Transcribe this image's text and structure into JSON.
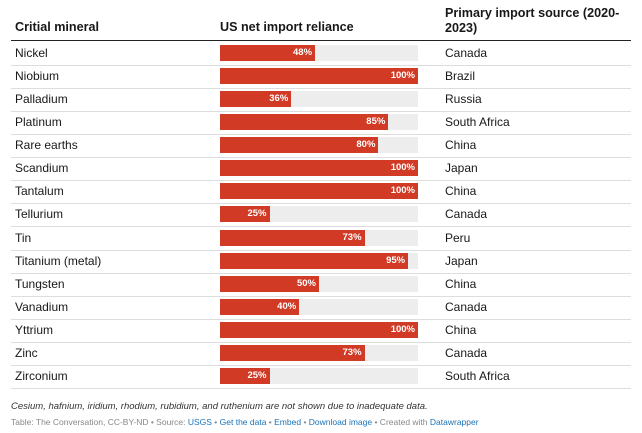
{
  "headers": {
    "mineral": "Critial mineral",
    "reliance": "US net import reliance",
    "source": "Primary import source (2020-2023)"
  },
  "colors": {
    "bar": "#d13a25",
    "track": "#ededed",
    "link": "#1a72b8"
  },
  "chart_data": {
    "type": "table",
    "columns": [
      "Critial mineral",
      "US net import reliance",
      "Primary import source (2020-2023)"
    ],
    "value_unit": "%",
    "xlim": [
      0,
      100
    ],
    "rows": [
      {
        "mineral": "Nickel",
        "value": 48,
        "label": "48%",
        "source": "Canada"
      },
      {
        "mineral": "Niobium",
        "value": 100,
        "label": "100%",
        "source": "Brazil"
      },
      {
        "mineral": "Palladium",
        "value": 36,
        "label": "36%",
        "source": "Russia"
      },
      {
        "mineral": "Platinum",
        "value": 85,
        "label": "85%",
        "source": "South Africa"
      },
      {
        "mineral": "Rare earths",
        "value": 80,
        "label": "80%",
        "source": "China"
      },
      {
        "mineral": "Scandium",
        "value": 100,
        "label": "100%",
        "source": "Japan"
      },
      {
        "mineral": "Tantalum",
        "value": 100,
        "label": "100%",
        "source": "China"
      },
      {
        "mineral": "Tellurium",
        "value": 25,
        "label": "25%",
        "source": "Canada"
      },
      {
        "mineral": "Tin",
        "value": 73,
        "label": "73%",
        "source": "Peru"
      },
      {
        "mineral": "Titanium (metal)",
        "value": 95,
        "label": "95%",
        "source": "Japan"
      },
      {
        "mineral": "Tungsten",
        "value": 50,
        "label": "50%",
        "source": "China"
      },
      {
        "mineral": "Vanadium",
        "value": 40,
        "label": "40%",
        "source": "Canada"
      },
      {
        "mineral": "Yttrium",
        "value": 100,
        "label": "100%",
        "source": "China"
      },
      {
        "mineral": "Zinc",
        "value": 73,
        "label": "73%",
        "source": "Canada"
      },
      {
        "mineral": "Zirconium",
        "value": 25,
        "label": "25%",
        "source": "South Africa"
      }
    ]
  },
  "footer": {
    "note": "Cesium, hafnium, iridium, rhodium, rubidium, and ruthenium are not shown due to inadequate data.",
    "credit_prefix": "Table: The Conversation, CC-BY-ND • Source: ",
    "source_link": "USGS",
    "sep1": " • ",
    "get_data": "Get the data",
    "sep2": " • ",
    "embed": "Embed",
    "sep3": " • ",
    "download": "Download image",
    "created_prefix": " • Created with ",
    "datawrapper": "Datawrapper"
  }
}
